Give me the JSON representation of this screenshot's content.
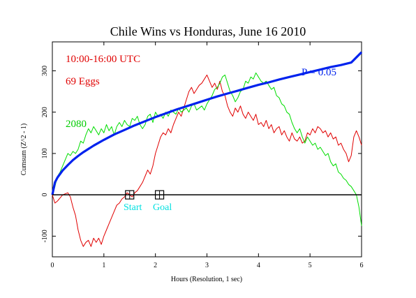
{
  "chart_data": {
    "type": "line",
    "title": "Chile Wins vs Honduras, June 16 2010",
    "xlabel": "Hours (Resolution, 1 sec)",
    "ylabel": "Cumsum (Z^2 - 1)",
    "xlim": [
      0,
      6
    ],
    "ylim": [
      -150,
      370
    ],
    "x_ticks": [
      0,
      1,
      2,
      3,
      4,
      5,
      6
    ],
    "y_ticks": [
      -100,
      0,
      100,
      200,
      300
    ],
    "grid": false,
    "annotations": {
      "time_range": "10:00-16:00 UTC",
      "eggs": "69 Eggs",
      "seconds": "2080",
      "p_value": "P = 0.05",
      "start_label": "Start",
      "goal_label": "Goal"
    },
    "markers": [
      {
        "name": "Start",
        "x": 1.5,
        "y": 0
      },
      {
        "name": "Goal",
        "x": 2.08,
        "y": 0
      }
    ],
    "series": [
      {
        "name": "69 Eggs",
        "color": "#e00000",
        "points": [
          [
            0,
            0
          ],
          [
            0.05,
            -20
          ],
          [
            0.1,
            -15
          ],
          [
            0.2,
            0
          ],
          [
            0.3,
            5
          ],
          [
            0.35,
            -5
          ],
          [
            0.4,
            -30
          ],
          [
            0.45,
            -50
          ],
          [
            0.5,
            -85
          ],
          [
            0.55,
            -110
          ],
          [
            0.6,
            -125
          ],
          [
            0.65,
            -115
          ],
          [
            0.7,
            -110
          ],
          [
            0.75,
            -125
          ],
          [
            0.8,
            -105
          ],
          [
            0.85,
            -115
          ],
          [
            0.9,
            -105
          ],
          [
            0.95,
            -120
          ],
          [
            1.0,
            -100
          ],
          [
            1.05,
            -85
          ],
          [
            1.1,
            -70
          ],
          [
            1.15,
            -55
          ],
          [
            1.2,
            -40
          ],
          [
            1.25,
            -25
          ],
          [
            1.3,
            -20
          ],
          [
            1.35,
            -10
          ],
          [
            1.4,
            -5
          ],
          [
            1.45,
            5
          ],
          [
            1.5,
            0
          ],
          [
            1.55,
            -5
          ],
          [
            1.6,
            5
          ],
          [
            1.65,
            10
          ],
          [
            1.7,
            20
          ],
          [
            1.75,
            30
          ],
          [
            1.8,
            45
          ],
          [
            1.85,
            60
          ],
          [
            1.9,
            50
          ],
          [
            1.95,
            70
          ],
          [
            2.0,
            100
          ],
          [
            2.05,
            120
          ],
          [
            2.1,
            140
          ],
          [
            2.15,
            150
          ],
          [
            2.2,
            145
          ],
          [
            2.25,
            160
          ],
          [
            2.3,
            150
          ],
          [
            2.35,
            170
          ],
          [
            2.4,
            185
          ],
          [
            2.45,
            200
          ],
          [
            2.5,
            190
          ],
          [
            2.55,
            210
          ],
          [
            2.6,
            230
          ],
          [
            2.65,
            250
          ],
          [
            2.7,
            260
          ],
          [
            2.75,
            245
          ],
          [
            2.8,
            255
          ],
          [
            2.85,
            265
          ],
          [
            2.9,
            270
          ],
          [
            2.95,
            280
          ],
          [
            3.0,
            290
          ],
          [
            3.05,
            275
          ],
          [
            3.1,
            260
          ],
          [
            3.15,
            270
          ],
          [
            3.2,
            255
          ],
          [
            3.25,
            275
          ],
          [
            3.3,
            250
          ],
          [
            3.35,
            240
          ],
          [
            3.4,
            215
          ],
          [
            3.45,
            200
          ],
          [
            3.5,
            190
          ],
          [
            3.55,
            210
          ],
          [
            3.6,
            200
          ],
          [
            3.65,
            215
          ],
          [
            3.7,
            195
          ],
          [
            3.75,
            185
          ],
          [
            3.8,
            200
          ],
          [
            3.85,
            190
          ],
          [
            3.9,
            180
          ],
          [
            3.95,
            195
          ],
          [
            4.0,
            170
          ],
          [
            4.05,
            175
          ],
          [
            4.1,
            165
          ],
          [
            4.15,
            180
          ],
          [
            4.2,
            160
          ],
          [
            4.25,
            170
          ],
          [
            4.3,
            150
          ],
          [
            4.35,
            160
          ],
          [
            4.4,
            165
          ],
          [
            4.45,
            145
          ],
          [
            4.5,
            155
          ],
          [
            4.55,
            140
          ],
          [
            4.6,
            130
          ],
          [
            4.65,
            150
          ],
          [
            4.7,
            135
          ],
          [
            4.75,
            130
          ],
          [
            4.8,
            140
          ],
          [
            4.85,
            125
          ],
          [
            4.9,
            130
          ],
          [
            4.95,
            150
          ],
          [
            5.0,
            145
          ],
          [
            5.05,
            160
          ],
          [
            5.1,
            150
          ],
          [
            5.15,
            165
          ],
          [
            5.2,
            160
          ],
          [
            5.25,
            150
          ],
          [
            5.3,
            155
          ],
          [
            5.35,
            140
          ],
          [
            5.4,
            150
          ],
          [
            5.45,
            135
          ],
          [
            5.5,
            140
          ],
          [
            5.55,
            120
          ],
          [
            5.6,
            125
          ],
          [
            5.65,
            110
          ],
          [
            5.7,
            100
          ],
          [
            5.75,
            80
          ],
          [
            5.8,
            95
          ],
          [
            5.85,
            140
          ],
          [
            5.9,
            155
          ],
          [
            5.95,
            140
          ],
          [
            6.0,
            120
          ]
        ]
      },
      {
        "name": "2080",
        "color": "#00dd00",
        "points": [
          [
            0,
            0
          ],
          [
            0.05,
            20
          ],
          [
            0.1,
            45
          ],
          [
            0.15,
            55
          ],
          [
            0.2,
            70
          ],
          [
            0.25,
            85
          ],
          [
            0.3,
            100
          ],
          [
            0.35,
            95
          ],
          [
            0.4,
            105
          ],
          [
            0.45,
            100
          ],
          [
            0.5,
            110
          ],
          [
            0.55,
            130
          ],
          [
            0.6,
            125
          ],
          [
            0.65,
            145
          ],
          [
            0.7,
            160
          ],
          [
            0.75,
            150
          ],
          [
            0.8,
            165
          ],
          [
            0.85,
            155
          ],
          [
            0.9,
            145
          ],
          [
            0.95,
            160
          ],
          [
            1.0,
            150
          ],
          [
            1.05,
            170
          ],
          [
            1.1,
            155
          ],
          [
            1.15,
            165
          ],
          [
            1.2,
            145
          ],
          [
            1.25,
            165
          ],
          [
            1.3,
            175
          ],
          [
            1.35,
            165
          ],
          [
            1.4,
            180
          ],
          [
            1.45,
            170
          ],
          [
            1.5,
            165
          ],
          [
            1.55,
            185
          ],
          [
            1.6,
            180
          ],
          [
            1.65,
            190
          ],
          [
            1.7,
            170
          ],
          [
            1.75,
            160
          ],
          [
            1.8,
            170
          ],
          [
            1.85,
            190
          ],
          [
            1.9,
            195
          ],
          [
            1.95,
            175
          ],
          [
            2.0,
            200
          ],
          [
            2.05,
            190
          ],
          [
            2.1,
            195
          ],
          [
            2.15,
            185
          ],
          [
            2.2,
            200
          ],
          [
            2.25,
            190
          ],
          [
            2.3,
            205
          ],
          [
            2.35,
            200
          ],
          [
            2.4,
            195
          ],
          [
            2.45,
            210
          ],
          [
            2.5,
            200
          ],
          [
            2.55,
            205
          ],
          [
            2.6,
            210
          ],
          [
            2.65,
            200
          ],
          [
            2.7,
            215
          ],
          [
            2.75,
            220
          ],
          [
            2.8,
            205
          ],
          [
            2.85,
            210
          ],
          [
            2.9,
            215
          ],
          [
            2.95,
            205
          ],
          [
            3.0,
            220
          ],
          [
            3.05,
            230
          ],
          [
            3.1,
            240
          ],
          [
            3.15,
            255
          ],
          [
            3.2,
            260
          ],
          [
            3.25,
            270
          ],
          [
            3.3,
            285
          ],
          [
            3.35,
            290
          ],
          [
            3.4,
            270
          ],
          [
            3.45,
            250
          ],
          [
            3.5,
            240
          ],
          [
            3.55,
            225
          ],
          [
            3.6,
            235
          ],
          [
            3.65,
            250
          ],
          [
            3.7,
            255
          ],
          [
            3.75,
            275
          ],
          [
            3.8,
            270
          ],
          [
            3.85,
            285
          ],
          [
            3.9,
            280
          ],
          [
            3.95,
            295
          ],
          [
            4.0,
            285
          ],
          [
            4.05,
            275
          ],
          [
            4.1,
            270
          ],
          [
            4.15,
            275
          ],
          [
            4.2,
            265
          ],
          [
            4.25,
            255
          ],
          [
            4.3,
            260
          ],
          [
            4.35,
            240
          ],
          [
            4.4,
            235
          ],
          [
            4.45,
            220
          ],
          [
            4.5,
            215
          ],
          [
            4.55,
            200
          ],
          [
            4.6,
            195
          ],
          [
            4.65,
            175
          ],
          [
            4.7,
            160
          ],
          [
            4.75,
            150
          ],
          [
            4.8,
            160
          ],
          [
            4.85,
            140
          ],
          [
            4.9,
            125
          ],
          [
            4.95,
            140
          ],
          [
            5.0,
            130
          ],
          [
            5.05,
            120
          ],
          [
            5.1,
            125
          ],
          [
            5.15,
            110
          ],
          [
            5.2,
            115
          ],
          [
            5.25,
            105
          ],
          [
            5.3,
            95
          ],
          [
            5.35,
            100
          ],
          [
            5.4,
            80
          ],
          [
            5.45,
            70
          ],
          [
            5.5,
            75
          ],
          [
            5.55,
            55
          ],
          [
            5.6,
            50
          ],
          [
            5.65,
            40
          ],
          [
            5.7,
            35
          ],
          [
            5.75,
            25
          ],
          [
            5.8,
            20
          ],
          [
            5.85,
            10
          ],
          [
            5.9,
            0
          ],
          [
            5.95,
            -30
          ],
          [
            6.0,
            -75
          ]
        ]
      },
      {
        "name": "P = 0.05",
        "color": "#0022ee",
        "points": [
          [
            0,
            0
          ],
          [
            0.05,
            30
          ],
          [
            0.1,
            42
          ],
          [
            0.2,
            59
          ],
          [
            0.3,
            72
          ],
          [
            0.4,
            84
          ],
          [
            0.5,
            94
          ],
          [
            0.6,
            103
          ],
          [
            0.8,
            119
          ],
          [
            1.0,
            133
          ],
          [
            1.2,
            146
          ],
          [
            1.4,
            157
          ],
          [
            1.6,
            168
          ],
          [
            1.8,
            178
          ],
          [
            2.0,
            188
          ],
          [
            2.2,
            197
          ],
          [
            2.4,
            206
          ],
          [
            2.6,
            214
          ],
          [
            2.8,
            222
          ],
          [
            3.0,
            230
          ],
          [
            3.2,
            238
          ],
          [
            3.4,
            245
          ],
          [
            3.6,
            252
          ],
          [
            3.8,
            259
          ],
          [
            4.0,
            266
          ],
          [
            4.2,
            272
          ],
          [
            4.4,
            279
          ],
          [
            4.6,
            285
          ],
          [
            4.8,
            291
          ],
          [
            5.0,
            297
          ],
          [
            5.2,
            303
          ],
          [
            5.4,
            309
          ],
          [
            5.6,
            314
          ],
          [
            5.8,
            320
          ],
          [
            6.0,
            345
          ]
        ]
      }
    ]
  }
}
